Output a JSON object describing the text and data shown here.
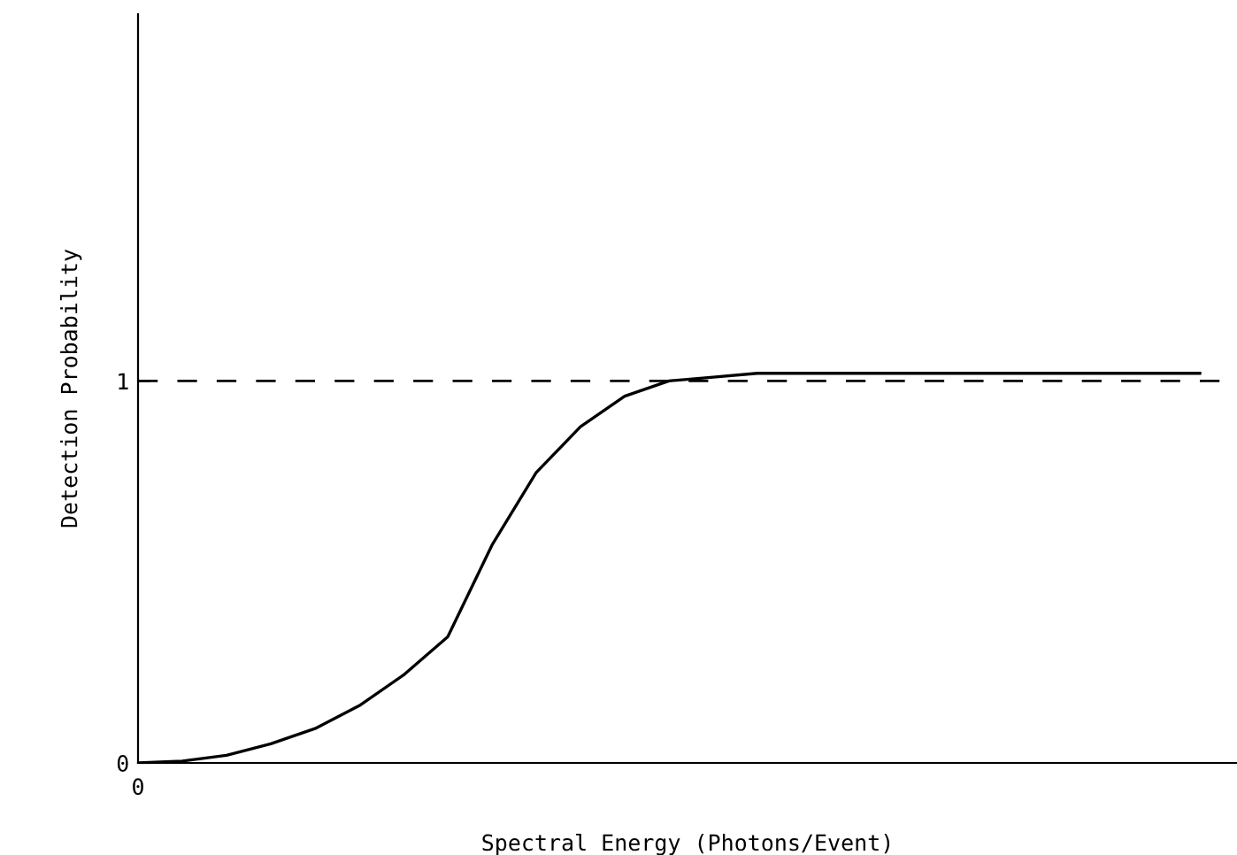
{
  "chart_data": {
    "type": "line",
    "xlabel": "Spectral Energy (Photons/Event)",
    "ylabel": "Detection Probability",
    "categories": [
      "0",
      null,
      null,
      null,
      null,
      null,
      null,
      null,
      null,
      null,
      null,
      null,
      null,
      null,
      null,
      null,
      null,
      null,
      null,
      null,
      null,
      null,
      null,
      null,
      null
    ],
    "series": [
      {
        "color": "#000000",
        "values": [
          0,
          0.005,
          0.02,
          0.05,
          0.09,
          0.15,
          0.23,
          0.33,
          0.57,
          0.76,
          0.88,
          0.96,
          1.0,
          1.01,
          1.02,
          1.02,
          1.02,
          1.02,
          1.02,
          1.02,
          1.02,
          1.02,
          1.02,
          1.02,
          1.02
        ]
      }
    ],
    "ylim": [
      0,
      1.96
    ],
    "yticks": [
      0,
      1
    ],
    "ref_lines": [
      {
        "axis": "y",
        "value": 1,
        "color": "#000000",
        "line_style": "dashed"
      }
    ],
    "grid": false,
    "legend": false,
    "marker": "none",
    "line_style": "solid"
  }
}
